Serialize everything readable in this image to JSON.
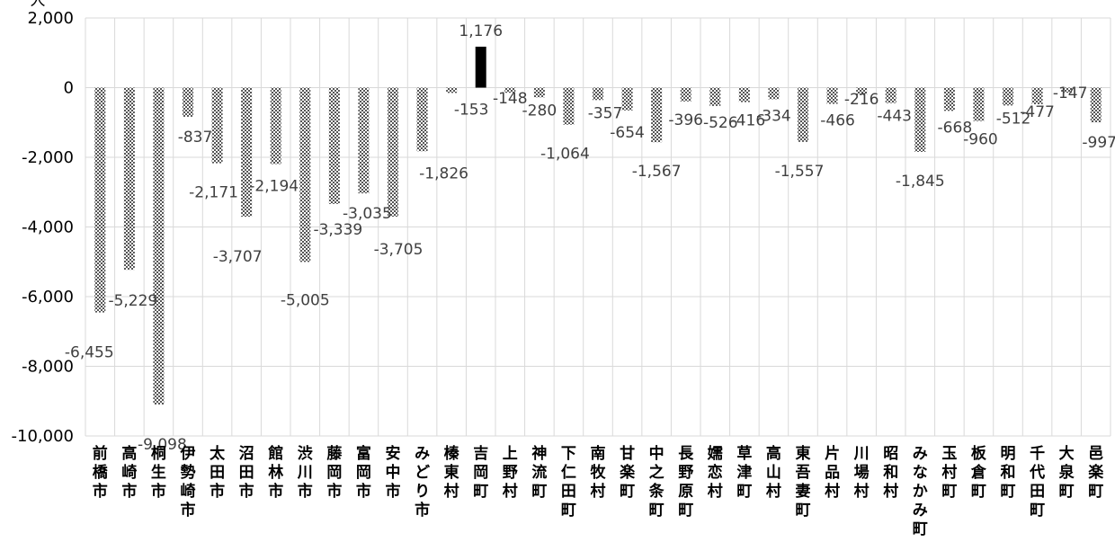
{
  "chart_data": {
    "type": "bar",
    "unit_label": "人",
    "categories": [
      "前橋市",
      "高崎市",
      "桐生市",
      "伊勢崎市",
      "太田市",
      "沼田市",
      "館林市",
      "渋川市",
      "藤岡市",
      "富岡市",
      "安中市",
      "みどり市",
      "榛東村",
      "吉岡町",
      "上野村",
      "神流町",
      "下仁田町",
      "南牧村",
      "甘楽町",
      "中之条町",
      "長野原町",
      "嬬恋村",
      "草津町",
      "高山村",
      "東吾妻町",
      "片品村",
      "川場村",
      "昭和村",
      "みなかみ町",
      "玉村町",
      "板倉町",
      "明和町",
      "千代田町",
      "大泉町",
      "邑楽町"
    ],
    "values": [
      -6455,
      -5229,
      -9098,
      -837,
      -2171,
      -3707,
      -2194,
      -5005,
      -3339,
      -3035,
      -3705,
      -1826,
      -153,
      1176,
      -148,
      -280,
      -1064,
      -357,
      -654,
      -1567,
      -396,
      -526,
      -416,
      -334,
      -1557,
      -466,
      -216,
      -443,
      -1845,
      -668,
      -960,
      -512,
      -477,
      -147,
      -997
    ],
    "data_labels": [
      "-6,455",
      "-5,229",
      "-9,098",
      "-837",
      "-2,171",
      "-3,707",
      "-2,194",
      "-5,005",
      "-3,339",
      "-3,035",
      "-3,705",
      "-1,826",
      "-153",
      "1,176",
      "-148",
      "-280",
      "-1,064",
      "-357",
      "-654",
      "-1,567",
      "-396",
      "-526",
      "-416",
      "-334",
      "-1,557",
      "-466",
      "-216",
      "-443",
      "-1,845",
      "-668",
      "-960",
      "-512",
      "-477",
      "-147",
      "-997"
    ],
    "y_ticks": [
      2000,
      0,
      -2000,
      -4000,
      -6000,
      -8000,
      -10000
    ],
    "y_tick_labels": [
      "2,000",
      "0",
      "-2,000",
      "-4,000",
      "-6,000",
      "-8,000",
      "-10,000"
    ],
    "ylim": [
      -10000,
      2000
    ],
    "grid": true,
    "legend": "none",
    "colors": {
      "negative": "hatched-gray",
      "positive": "#000000",
      "grid": "#d9d9d9"
    }
  }
}
